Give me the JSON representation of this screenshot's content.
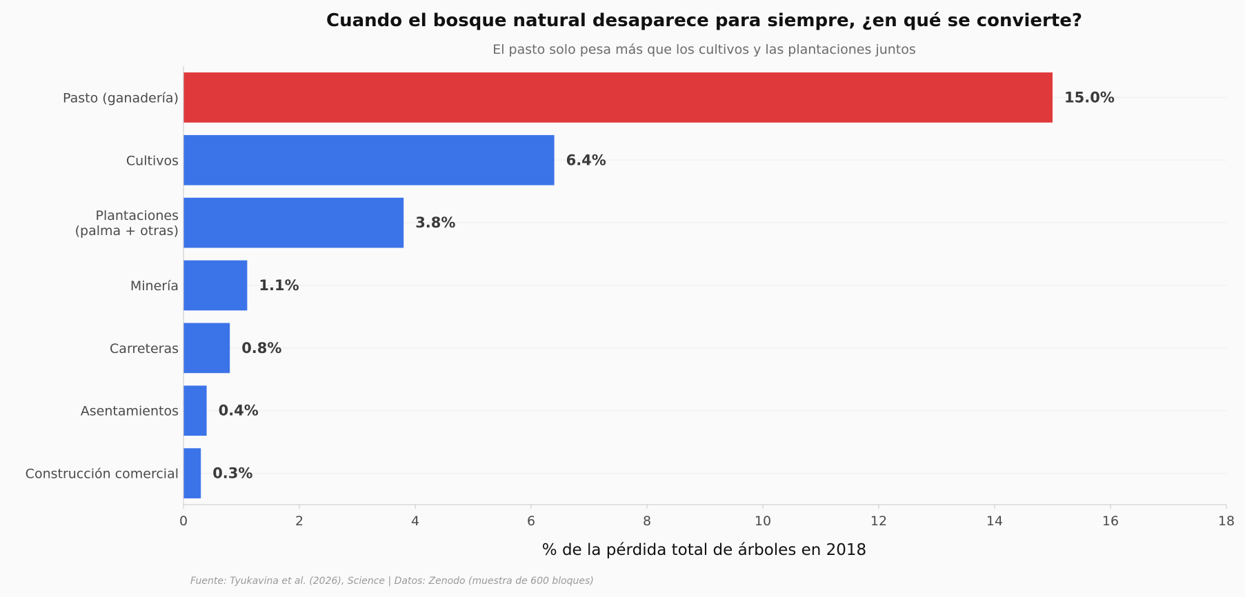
{
  "chart_data": {
    "type": "bar",
    "orientation": "horizontal",
    "title": "Cuando el bosque natural desaparece para siempre, ¿en qué se convierte?",
    "subtitle": "El pasto solo pesa más que los cultivos y las plantaciones juntos",
    "xlabel": "% de la pérdida total de árboles en 2018",
    "ylabel": "",
    "categories": [
      [
        "Pasto (ganadería)"
      ],
      [
        "Cultivos"
      ],
      [
        "Plantaciones",
        "(palma + otras)"
      ],
      [
        "Minería"
      ],
      [
        "Carreteras"
      ],
      [
        "Asentamientos"
      ],
      [
        "Construcción comercial"
      ]
    ],
    "values": [
      15.0,
      6.4,
      3.8,
      1.1,
      0.8,
      0.4,
      0.3
    ],
    "value_labels": [
      "15.0%",
      "6.4%",
      "3.8%",
      "1.1%",
      "0.8%",
      "0.4%",
      "0.3%"
    ],
    "xlim": [
      0,
      18
    ],
    "xticks": [
      "0",
      "2",
      "4",
      "6",
      "8",
      "10",
      "12",
      "14",
      "16",
      "18"
    ],
    "grid": "horizontal",
    "colors": {
      "highlight": "#e0393b",
      "bar": "#3b73e9",
      "background": "#fafafa",
      "axis": "#c8c8c8",
      "grid": "#ececec"
    },
    "source": "Fuente: Tyukavina et al. (2026), Science | Datos: Zenodo (muestra de 600 bloques)"
  }
}
